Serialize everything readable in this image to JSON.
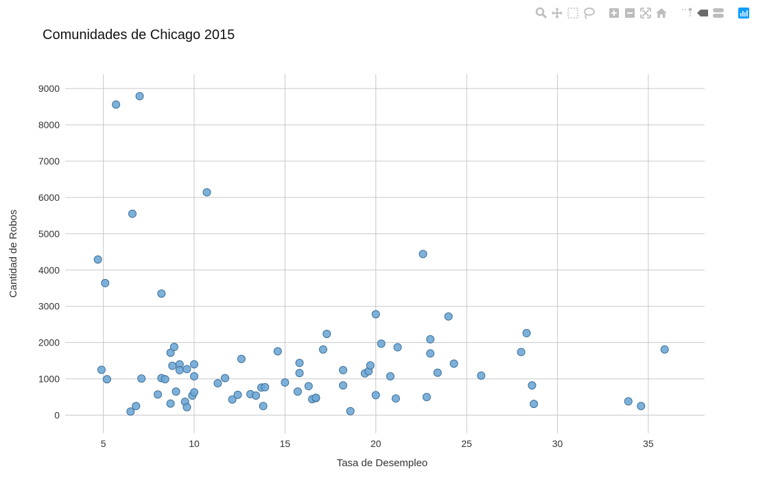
{
  "modebar": {
    "buttons": [
      {
        "name": "zoom-icon"
      },
      {
        "name": "pan-icon"
      },
      {
        "name": "box-select-icon"
      },
      {
        "name": "lasso-select-icon"
      },
      {
        "name": "zoom-in-icon"
      },
      {
        "name": "zoom-out-icon"
      },
      {
        "name": "autoscale-icon"
      },
      {
        "name": "home-icon"
      },
      {
        "name": "spike-lines-icon"
      },
      {
        "name": "hover-closest-icon"
      },
      {
        "name": "hover-compare-icon"
      },
      {
        "name": "plotly-logo-icon"
      }
    ],
    "icon_color": "#bdbdbd",
    "logo_color": "#119dff"
  },
  "chart_data": {
    "type": "scatter",
    "title": "Comunidades de Chicago 2015",
    "xlabel": "Tasa de Desempleo",
    "ylabel": "Cantidad de Robos",
    "xlim": [
      2.9,
      38.1
    ],
    "ylim": [
      -500,
      9400
    ],
    "xticks": [
      5,
      10,
      15,
      20,
      25,
      30,
      35
    ],
    "yticks": [
      0,
      1000,
      2000,
      3000,
      4000,
      5000,
      6000,
      7000,
      8000,
      9000
    ],
    "grid": true,
    "marker_color": "#6fa8d6",
    "marker_edge_color": "#3d6f99",
    "grid_color": "#c8c8c8",
    "points": [
      {
        "x": 4.7,
        "y": 4290
      },
      {
        "x": 4.9,
        "y": 1250
      },
      {
        "x": 5.1,
        "y": 3640
      },
      {
        "x": 5.2,
        "y": 990
      },
      {
        "x": 5.7,
        "y": 8560
      },
      {
        "x": 6.5,
        "y": 100
      },
      {
        "x": 6.6,
        "y": 5550
      },
      {
        "x": 6.8,
        "y": 250
      },
      {
        "x": 7.0,
        "y": 8790
      },
      {
        "x": 7.1,
        "y": 1010
      },
      {
        "x": 8.0,
        "y": 570
      },
      {
        "x": 8.2,
        "y": 3350
      },
      {
        "x": 8.2,
        "y": 1020
      },
      {
        "x": 8.4,
        "y": 990
      },
      {
        "x": 8.7,
        "y": 1720
      },
      {
        "x": 8.7,
        "y": 320
      },
      {
        "x": 8.8,
        "y": 1360
      },
      {
        "x": 8.9,
        "y": 1880
      },
      {
        "x": 9.0,
        "y": 650
      },
      {
        "x": 9.2,
        "y": 1400
      },
      {
        "x": 9.2,
        "y": 1240
      },
      {
        "x": 9.5,
        "y": 370
      },
      {
        "x": 9.6,
        "y": 220
      },
      {
        "x": 9.6,
        "y": 1270
      },
      {
        "x": 9.9,
        "y": 540
      },
      {
        "x": 10.0,
        "y": 1400
      },
      {
        "x": 10.0,
        "y": 1070
      },
      {
        "x": 10.0,
        "y": 630
      },
      {
        "x": 10.7,
        "y": 6140
      },
      {
        "x": 11.3,
        "y": 880
      },
      {
        "x": 11.7,
        "y": 1020
      },
      {
        "x": 12.1,
        "y": 430
      },
      {
        "x": 12.4,
        "y": 560
      },
      {
        "x": 12.6,
        "y": 1550
      },
      {
        "x": 13.1,
        "y": 580
      },
      {
        "x": 13.4,
        "y": 540
      },
      {
        "x": 13.7,
        "y": 760
      },
      {
        "x": 13.8,
        "y": 250
      },
      {
        "x": 13.9,
        "y": 770
      },
      {
        "x": 14.6,
        "y": 1760
      },
      {
        "x": 15.0,
        "y": 900
      },
      {
        "x": 15.7,
        "y": 650
      },
      {
        "x": 15.8,
        "y": 1440
      },
      {
        "x": 15.8,
        "y": 1160
      },
      {
        "x": 16.3,
        "y": 800
      },
      {
        "x": 16.5,
        "y": 440
      },
      {
        "x": 16.7,
        "y": 470
      },
      {
        "x": 16.7,
        "y": 480
      },
      {
        "x": 17.1,
        "y": 1810
      },
      {
        "x": 17.3,
        "y": 2240
      },
      {
        "x": 18.2,
        "y": 1240
      },
      {
        "x": 18.2,
        "y": 820
      },
      {
        "x": 18.6,
        "y": 110
      },
      {
        "x": 19.4,
        "y": 1150
      },
      {
        "x": 19.6,
        "y": 1210
      },
      {
        "x": 19.7,
        "y": 1370
      },
      {
        "x": 20.0,
        "y": 2780
      },
      {
        "x": 20.0,
        "y": 550
      },
      {
        "x": 20.3,
        "y": 1970
      },
      {
        "x": 20.8,
        "y": 1070
      },
      {
        "x": 21.1,
        "y": 460
      },
      {
        "x": 21.2,
        "y": 1870
      },
      {
        "x": 22.6,
        "y": 4440
      },
      {
        "x": 22.8,
        "y": 500
      },
      {
        "x": 23.0,
        "y": 2090
      },
      {
        "x": 23.0,
        "y": 1700
      },
      {
        "x": 23.4,
        "y": 1170
      },
      {
        "x": 24.0,
        "y": 2720
      },
      {
        "x": 24.3,
        "y": 1420
      },
      {
        "x": 25.8,
        "y": 1090
      },
      {
        "x": 28.0,
        "y": 1740
      },
      {
        "x": 28.3,
        "y": 2260
      },
      {
        "x": 28.6,
        "y": 820
      },
      {
        "x": 28.7,
        "y": 310
      },
      {
        "x": 33.9,
        "y": 380
      },
      {
        "x": 34.6,
        "y": 250
      },
      {
        "x": 35.9,
        "y": 1810
      }
    ]
  }
}
